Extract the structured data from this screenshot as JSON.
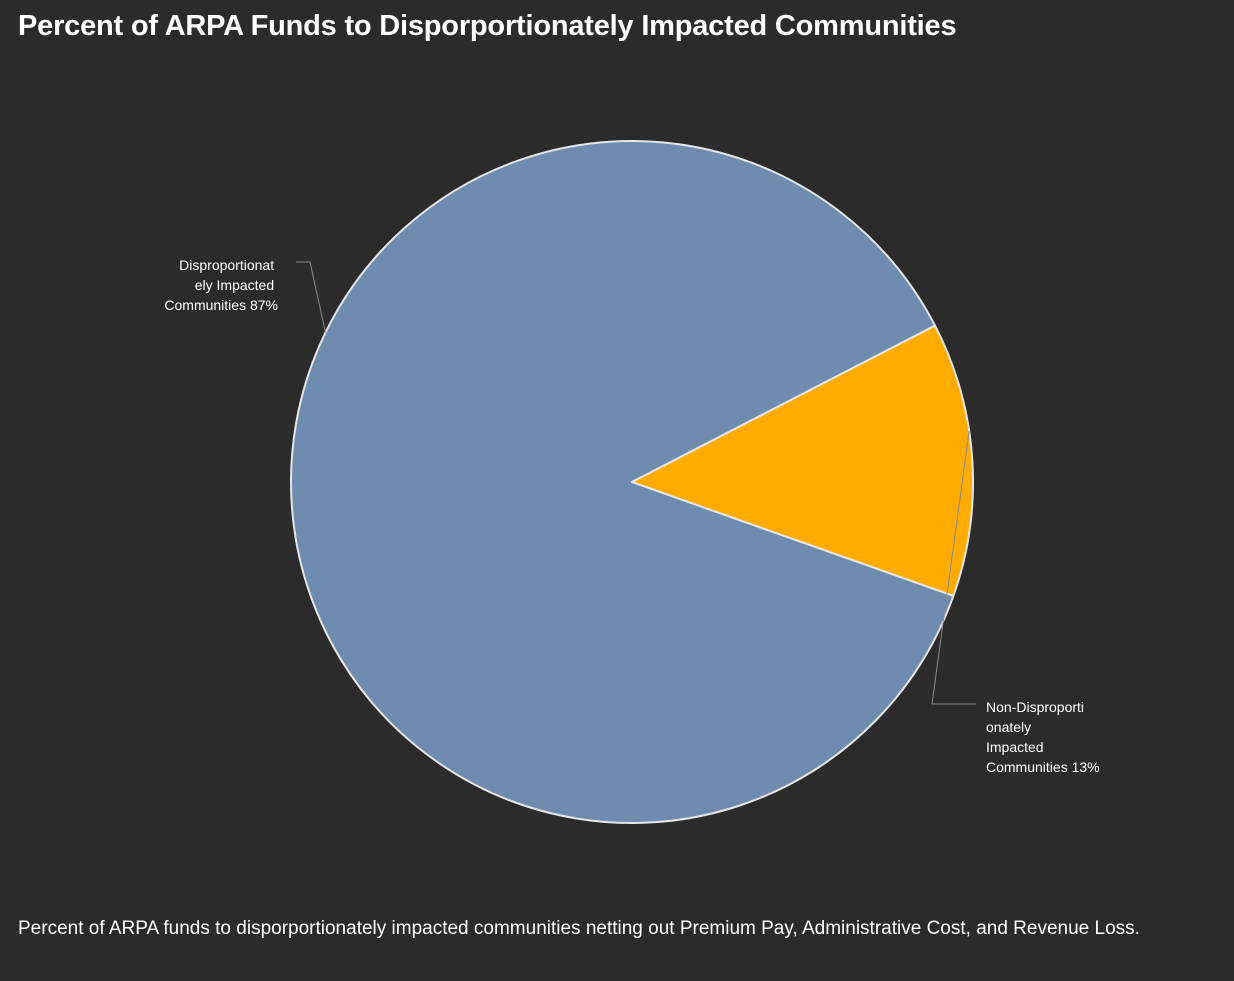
{
  "chart_data": {
    "type": "pie",
    "title": "Percent of ARPA Funds to Disporportionately Impacted Communities",
    "description": "Percent of ARPA funds to disporportionately impacted communities netting out Premium Pay, Administrative Cost, and Revenue Loss.",
    "slices": [
      {
        "label_lines": [
          "Disproportionat",
          "ely Impacted",
          "Communities 87%"
        ],
        "value": 87,
        "color": "#6e8bb0"
      },
      {
        "label_lines": [
          "Non-Disproporti",
          "onately",
          "Impacted",
          "Communities 13%"
        ],
        "value": 13,
        "color": "#ffab00"
      }
    ],
    "slice_border_color": "#e6e6e6",
    "legend": "none",
    "grid": false
  }
}
